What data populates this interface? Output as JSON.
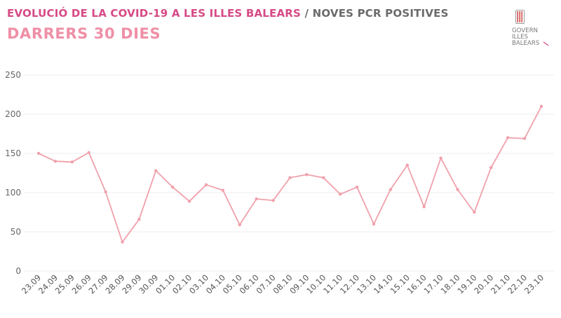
{
  "header": {
    "title_main": "EVOLUCIÓ DE LA COVID-19 A LES ILLES BALEARS",
    "title_sep": "/",
    "title_sub": "NOVES PCR POSITIVES",
    "subtitle": "DARRERS 30 DIES"
  },
  "logo": {
    "line1": "GOVERN",
    "line2": "ILLES",
    "line3": "BALEARS"
  },
  "colors": {
    "title": "#d64a86",
    "subtitle": "#ef8fa6",
    "series": "#f0a1ac",
    "grid": "#ececec",
    "axis_text": "#666666"
  },
  "chart_data": {
    "type": "line",
    "title": "",
    "xlabel": "",
    "ylabel": "",
    "ylim": [
      0,
      250
    ],
    "yticks": [
      0,
      50,
      100,
      150,
      200,
      250
    ],
    "grid": true,
    "x": [
      "23.09",
      "24.09",
      "25.09",
      "26.09",
      "27.09",
      "28.09",
      "29.09",
      "30.09",
      "01.10",
      "02.10",
      "03.10",
      "04.10",
      "05.10",
      "06.10",
      "07.10",
      "08.10",
      "09.10",
      "10.10",
      "11.10",
      "12.10",
      "13.10",
      "14.10",
      "15.10",
      "16.10",
      "17.10",
      "18.10",
      "19.10",
      "20.10",
      "21.10",
      "22.10",
      "23.10"
    ],
    "series": [
      {
        "name": "",
        "values": [
          150,
          140,
          139,
          151,
          101,
          37,
          66,
          128,
          107,
          89,
          110,
          103,
          59,
          92,
          90,
          119,
          123,
          119,
          98,
          107,
          60,
          104,
          135,
          82,
          144,
          104,
          75,
          132,
          170,
          169,
          210
        ]
      }
    ]
  }
}
